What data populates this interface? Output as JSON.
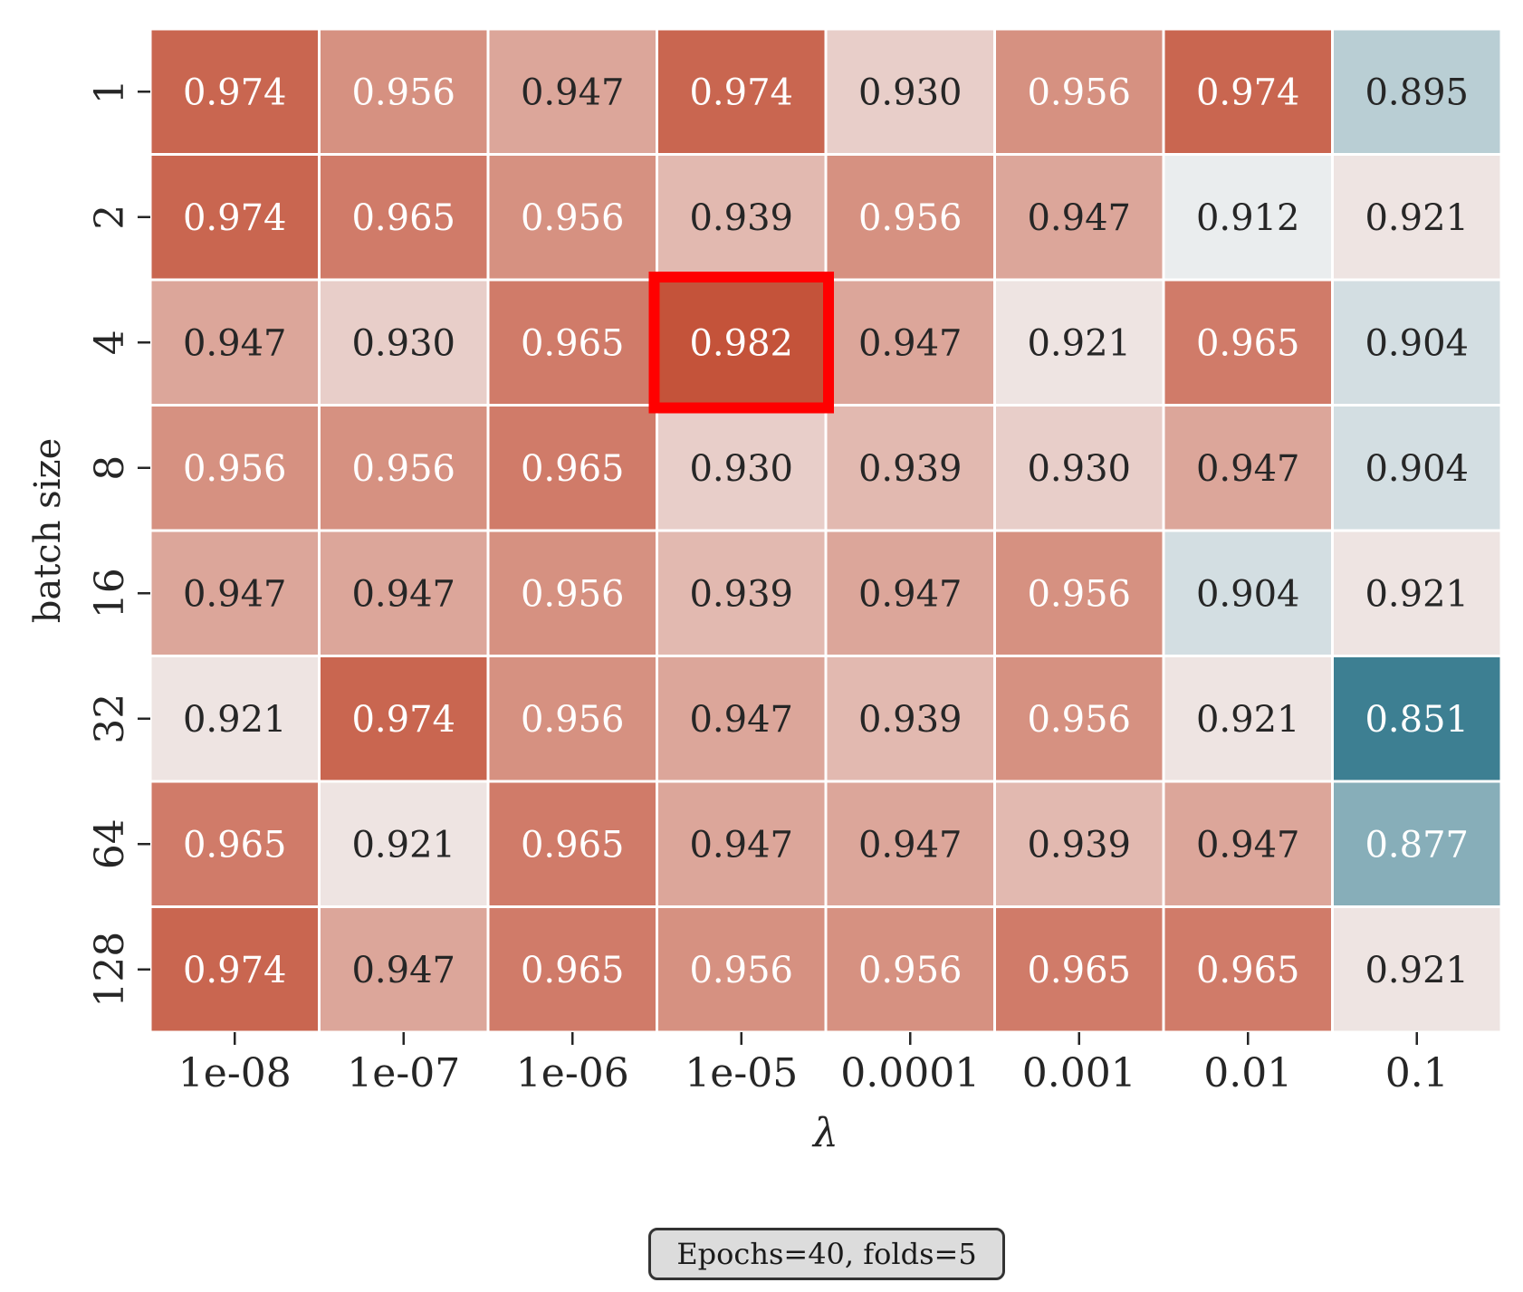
{
  "chart_data": {
    "type": "heatmap",
    "title": "",
    "xlabel": "λ",
    "ylabel": "batch size",
    "x_categories": [
      "1e-08",
      "1e-07",
      "1e-06",
      "1e-05",
      "0.0001",
      "0.001",
      "0.01",
      "0.1"
    ],
    "y_categories": [
      "1",
      "2",
      "4",
      "8",
      "16",
      "32",
      "64",
      "128"
    ],
    "values": [
      [
        0.974,
        0.956,
        0.947,
        0.974,
        0.93,
        0.956,
        0.974,
        0.895
      ],
      [
        0.974,
        0.965,
        0.956,
        0.939,
        0.956,
        0.947,
        0.912,
        0.921
      ],
      [
        0.947,
        0.93,
        0.965,
        0.982,
        0.947,
        0.921,
        0.965,
        0.904
      ],
      [
        0.956,
        0.956,
        0.965,
        0.93,
        0.939,
        0.93,
        0.947,
        0.904
      ],
      [
        0.947,
        0.947,
        0.956,
        0.939,
        0.947,
        0.956,
        0.904,
        0.921
      ],
      [
        0.921,
        0.974,
        0.956,
        0.947,
        0.939,
        0.956,
        0.921,
        0.851
      ],
      [
        0.965,
        0.921,
        0.965,
        0.947,
        0.947,
        0.939,
        0.947,
        0.877
      ],
      [
        0.974,
        0.947,
        0.965,
        0.956,
        0.956,
        0.965,
        0.965,
        0.921
      ]
    ],
    "value_format": "3 decimals",
    "colormap": {
      "low": "#3d7f92",
      "mid": "#f2f2f2",
      "high": "#c4533a",
      "low_value": 0.851,
      "center_value": 0.915,
      "high_value": 0.982
    },
    "highlight": {
      "row": 2,
      "col": 3,
      "color": "#ff0000"
    },
    "grid_color": "#ffffff",
    "colorbar": false,
    "annotation": "Epochs=40, folds=5"
  }
}
